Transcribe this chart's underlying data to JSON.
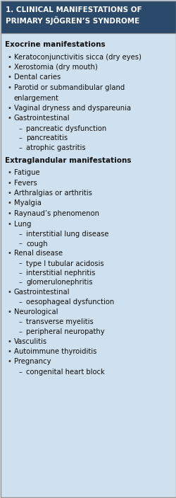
{
  "title_line1": "1. CLINICAL MANIFESTATIONS OF",
  "title_line2": "PRIMARY SJÖGREN’S SYNDROME",
  "title_bg": "#2b4a6b",
  "title_color": "#ffffff",
  "body_bg": "#cfe0ee",
  "border_color": "#999999",
  "fig_w": 2.51,
  "fig_h": 7.04,
  "dpi": 100,
  "content": [
    {
      "type": "section",
      "text": "Exocrine manifestations"
    },
    {
      "type": "bullet",
      "text": "Keratoconjunctivitis sicca (dry eyes)"
    },
    {
      "type": "bullet",
      "text": "Xerostomia (dry mouth)"
    },
    {
      "type": "bullet",
      "text": "Dental caries"
    },
    {
      "type": "bullet2",
      "line1": "Parotid or submandibular gland",
      "line2": "enlargement"
    },
    {
      "type": "bullet",
      "text": "Vaginal dryness and dyspareunia"
    },
    {
      "type": "bullet",
      "text": "Gastrointestinal"
    },
    {
      "type": "subbullet",
      "text": "pancreatic dysfunction"
    },
    {
      "type": "subbullet",
      "text": "pancreatitis"
    },
    {
      "type": "subbullet",
      "text": "atrophic gastritis"
    },
    {
      "type": "section",
      "text": "Extraglandular manifestations"
    },
    {
      "type": "bullet",
      "text": "Fatigue"
    },
    {
      "type": "bullet",
      "text": "Fevers"
    },
    {
      "type": "bullet",
      "text": "Arthralgias or arthritis"
    },
    {
      "type": "bullet",
      "text": "Myalgia"
    },
    {
      "type": "bullet",
      "text": "Raynaud’s phenomenon"
    },
    {
      "type": "bullet",
      "text": "Lung"
    },
    {
      "type": "subbullet",
      "text": "interstitial lung disease"
    },
    {
      "type": "subbullet",
      "text": "cough"
    },
    {
      "type": "bullet",
      "text": "Renal disease"
    },
    {
      "type": "subbullet",
      "text": "type I tubular acidosis"
    },
    {
      "type": "subbullet",
      "text": "interstitial nephritis"
    },
    {
      "type": "subbullet",
      "text": "glomerulonephritis"
    },
    {
      "type": "bullet",
      "text": "Gastrointestinal"
    },
    {
      "type": "subbullet",
      "text": "oesophageal dysfunction"
    },
    {
      "type": "bullet",
      "text": "Neurological"
    },
    {
      "type": "subbullet",
      "text": "transverse myelitis"
    },
    {
      "type": "subbullet",
      "text": "peripheral neuropathy"
    },
    {
      "type": "bullet",
      "text": "Vasculitis"
    },
    {
      "type": "bullet",
      "text": "Autoimmune thyroiditis"
    },
    {
      "type": "bullet",
      "text": "Pregnancy"
    },
    {
      "type": "subbullet",
      "text": "congenital heart block"
    }
  ]
}
